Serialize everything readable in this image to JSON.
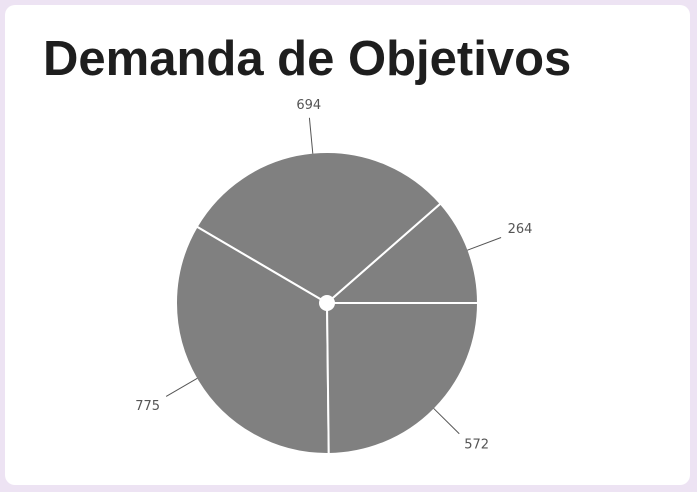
{
  "title": "Demanda de Objetivos",
  "colors": {
    "slice": "#808080",
    "slice_border": "#ffffff",
    "leader_line": "#555555",
    "label": "#555555",
    "title": "#1e1e1e",
    "background": "#ede3f3",
    "card": "#ffffff"
  },
  "chart_data": {
    "type": "pie",
    "title": "Demanda de Objetivos",
    "start_angle_deg": 0,
    "direction": "counterclockwise",
    "labels_shown": "values",
    "slices": [
      {
        "value": 264,
        "label": "264"
      },
      {
        "value": 694,
        "label": "694"
      },
      {
        "value": 775,
        "label": "775"
      },
      {
        "value": 572,
        "label": "572"
      }
    ]
  }
}
